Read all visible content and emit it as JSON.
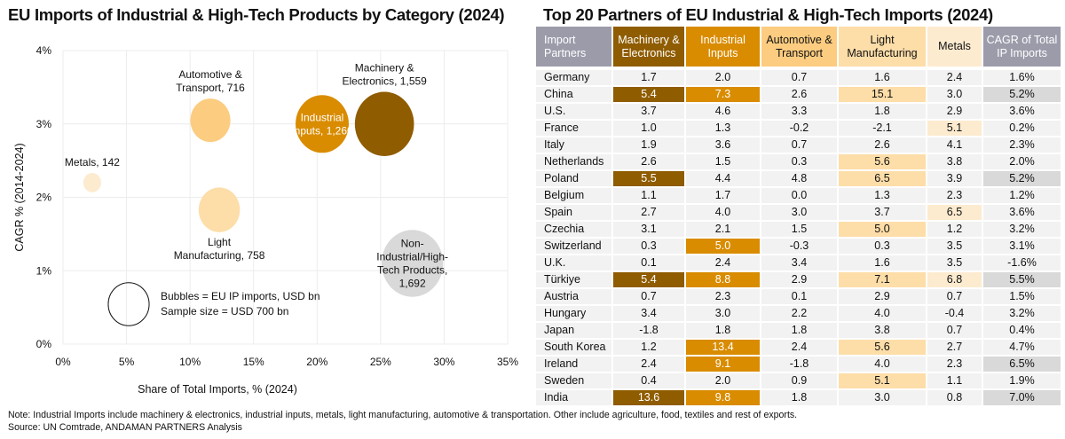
{
  "left_title": "EU Imports of Industrial & High-Tech Products by Category (2024)",
  "right_title": "Top 20 Partners of EU Industrial & High-Tech Imports (2024)",
  "chart_data": {
    "type": "scatter",
    "subtype": "bubble",
    "title": "EU Imports of Industrial & High-Tech Products by Category (2024)",
    "xlabel": "Share of Total Imports, % (2024)",
    "ylabel": "CAGR % (2014-2024)",
    "xlim": [
      0,
      35
    ],
    "ylim": [
      0,
      4
    ],
    "xticks": [
      "0%",
      "5%",
      "10%",
      "15%",
      "20%",
      "25%",
      "30%",
      "35%"
    ],
    "yticks": [
      "0%",
      "1%",
      "2%",
      "3%",
      "4%"
    ],
    "grid": true,
    "size_unit": "EU IP imports, USD bn",
    "series": [
      {
        "name": "Metals",
        "x": 2.3,
        "y": 2.2,
        "size": 142,
        "label": [
          "Metals, 142"
        ],
        "color": "#fdebd0",
        "label_pos": "above",
        "label_color": "#111111"
      },
      {
        "name": "Automotive & Transport",
        "x": 11.6,
        "y": 3.05,
        "size": 716,
        "label": [
          "Automotive &",
          "Transport, 716"
        ],
        "color": "#fccc80",
        "label_pos": "above",
        "label_color": "#111111"
      },
      {
        "name": "Light Manufacturing",
        "x": 12.3,
        "y": 1.83,
        "size": 758,
        "label": [
          "Light",
          "Manufacturing, 758"
        ],
        "color": "#fddda8",
        "label_pos": "below",
        "label_color": "#111111"
      },
      {
        "name": "Industrial Inputs",
        "x": 20.4,
        "y": 3.0,
        "size": 1260,
        "label": [
          "Industrial",
          "Inputs, 1,260"
        ],
        "color": "#d98c00",
        "label_pos": "inside",
        "label_color": "#ffffff"
      },
      {
        "name": "Machinery & Electronics",
        "x": 25.3,
        "y": 3.0,
        "size": 1559,
        "label": [
          "Machinery &",
          "Electronics, 1,559"
        ],
        "color": "#8f5c00",
        "label_pos": "above",
        "label_color": "#111111"
      },
      {
        "name": "Non-Industrial/High-Tech Products",
        "x": 27.5,
        "y": 1.1,
        "size": 1692,
        "label": [
          "Non-",
          "Industrial/High-",
          "Tech Products,",
          "1,692"
        ],
        "color": "#d9d9d9",
        "label_pos": "inside",
        "label_color": "#111111"
      }
    ],
    "legend": {
      "sample_size": 700,
      "lines": [
        "Bubbles = EU IP imports, USD bn",
        "Sample size = USD 700 bn"
      ],
      "position": "bottom-left"
    }
  },
  "table": {
    "headers": [
      {
        "label": [
          "Import",
          "Partners"
        ],
        "bg": "#9b9baa",
        "fg": "#ffffff"
      },
      {
        "label": [
          "Machinery &",
          "Electronics"
        ],
        "bg": "#8f5c00",
        "fg": "#ffffff"
      },
      {
        "label": [
          "Industrial",
          "Inputs"
        ],
        "bg": "#d98c00",
        "fg": "#ffffff"
      },
      {
        "label": [
          "Automotive &",
          "Transport"
        ],
        "bg": "#fccc80",
        "fg": "#111111"
      },
      {
        "label": [
          "Light",
          "Manufacturing"
        ],
        "bg": "#fddda8",
        "fg": "#111111"
      },
      {
        "label": [
          "Metals"
        ],
        "bg": "#fdebd0",
        "fg": "#111111"
      },
      {
        "label": [
          "CAGR of Total",
          "IP Imports"
        ],
        "bg": "#9b9baa",
        "fg": "#ffffff"
      }
    ],
    "highlight_colors": [
      "#8f5c00",
      "#d98c00",
      "#fccc80",
      "#fddda8",
      "#fdebd0",
      "#d9d9d9"
    ],
    "highlight_text": [
      "#ffffff",
      "#ffffff",
      "#111111",
      "#111111",
      "#111111",
      "#111111"
    ],
    "rows": [
      {
        "partner": "Germany",
        "values": [
          "1.7",
          "2.0",
          "0.7",
          "1.6",
          "2.4",
          "1.6%"
        ],
        "hl": [
          0,
          0,
          0,
          0,
          0,
          0
        ]
      },
      {
        "partner": "China",
        "values": [
          "5.4",
          "7.3",
          "2.6",
          "15.1",
          "3.0",
          "5.2%"
        ],
        "hl": [
          1,
          1,
          0,
          1,
          0,
          1
        ]
      },
      {
        "partner": "U.S.",
        "values": [
          "3.7",
          "4.6",
          "3.3",
          "1.8",
          "2.9",
          "3.6%"
        ],
        "hl": [
          0,
          0,
          0,
          0,
          0,
          0
        ]
      },
      {
        "partner": "France",
        "values": [
          "1.0",
          "1.3",
          "-0.2",
          "-2.1",
          "5.1",
          "0.2%"
        ],
        "hl": [
          0,
          0,
          0,
          0,
          1,
          0
        ]
      },
      {
        "partner": "Italy",
        "values": [
          "1.9",
          "3.6",
          "0.7",
          "2.6",
          "4.1",
          "2.3%"
        ],
        "hl": [
          0,
          0,
          0,
          0,
          0,
          0
        ]
      },
      {
        "partner": "Netherlands",
        "values": [
          "2.6",
          "1.5",
          "0.3",
          "5.6",
          "3.8",
          "2.0%"
        ],
        "hl": [
          0,
          0,
          0,
          1,
          0,
          0
        ]
      },
      {
        "partner": "Poland",
        "values": [
          "5.5",
          "4.4",
          "4.8",
          "6.5",
          "3.9",
          "5.2%"
        ],
        "hl": [
          1,
          0,
          0,
          1,
          0,
          1
        ]
      },
      {
        "partner": "Belgium",
        "values": [
          "1.1",
          "1.7",
          "0.0",
          "1.3",
          "2.3",
          "1.2%"
        ],
        "hl": [
          0,
          0,
          0,
          0,
          0,
          0
        ]
      },
      {
        "partner": "Spain",
        "values": [
          "2.7",
          "4.0",
          "3.0",
          "3.7",
          "6.5",
          "3.6%"
        ],
        "hl": [
          0,
          0,
          0,
          0,
          1,
          0
        ]
      },
      {
        "partner": "Czechia",
        "values": [
          "3.1",
          "2.1",
          "1.5",
          "5.0",
          "1.2",
          "3.2%"
        ],
        "hl": [
          0,
          0,
          0,
          1,
          0,
          0
        ]
      },
      {
        "partner": "Switzerland",
        "values": [
          "0.3",
          "5.0",
          "-0.3",
          "0.3",
          "3.5",
          "3.1%"
        ],
        "hl": [
          0,
          1,
          0,
          0,
          0,
          0
        ]
      },
      {
        "partner": "U.K.",
        "values": [
          "0.1",
          "2.4",
          "3.4",
          "1.6",
          "3.5",
          "-1.6%"
        ],
        "hl": [
          0,
          0,
          0,
          0,
          0,
          0
        ]
      },
      {
        "partner": "Türkiye",
        "values": [
          "5.4",
          "8.8",
          "2.9",
          "7.1",
          "6.8",
          "5.5%"
        ],
        "hl": [
          1,
          1,
          0,
          1,
          1,
          1
        ]
      },
      {
        "partner": "Austria",
        "values": [
          "0.7",
          "2.3",
          "0.1",
          "2.9",
          "0.7",
          "1.5%"
        ],
        "hl": [
          0,
          0,
          0,
          0,
          0,
          0
        ]
      },
      {
        "partner": "Hungary",
        "values": [
          "3.4",
          "3.0",
          "2.2",
          "4.0",
          "-0.4",
          "3.2%"
        ],
        "hl": [
          0,
          0,
          0,
          0,
          0,
          0
        ]
      },
      {
        "partner": "Japan",
        "values": [
          "-1.8",
          "1.8",
          "1.8",
          "3.8",
          "0.7",
          "0.4%"
        ],
        "hl": [
          0,
          0,
          0,
          0,
          0,
          0
        ]
      },
      {
        "partner": "South Korea",
        "values": [
          "1.2",
          "13.4",
          "2.4",
          "5.6",
          "2.7",
          "4.7%"
        ],
        "hl": [
          0,
          1,
          0,
          1,
          0,
          0
        ]
      },
      {
        "partner": "Ireland",
        "values": [
          "2.4",
          "9.1",
          "-1.8",
          "4.0",
          "2.3",
          "6.5%"
        ],
        "hl": [
          0,
          1,
          0,
          0,
          0,
          1
        ]
      },
      {
        "partner": "Sweden",
        "values": [
          "0.4",
          "2.0",
          "0.9",
          "5.1",
          "1.1",
          "1.9%"
        ],
        "hl": [
          0,
          0,
          0,
          1,
          0,
          0
        ]
      },
      {
        "partner": "India",
        "values": [
          "13.6",
          "9.8",
          "1.8",
          "3.0",
          "0.8",
          "7.0%"
        ],
        "hl": [
          1,
          1,
          0,
          0,
          0,
          1
        ]
      }
    ]
  },
  "footer": {
    "note": "Note: Industrial Imports include machinery & electronics, industrial inputs, metals, light manufacturing, automotive & transportation. Other include agriculture, food, textiles and rest of exports.",
    "source": "Source: UN Comtrade, ANDAMAN PARTNERS Analysis"
  }
}
